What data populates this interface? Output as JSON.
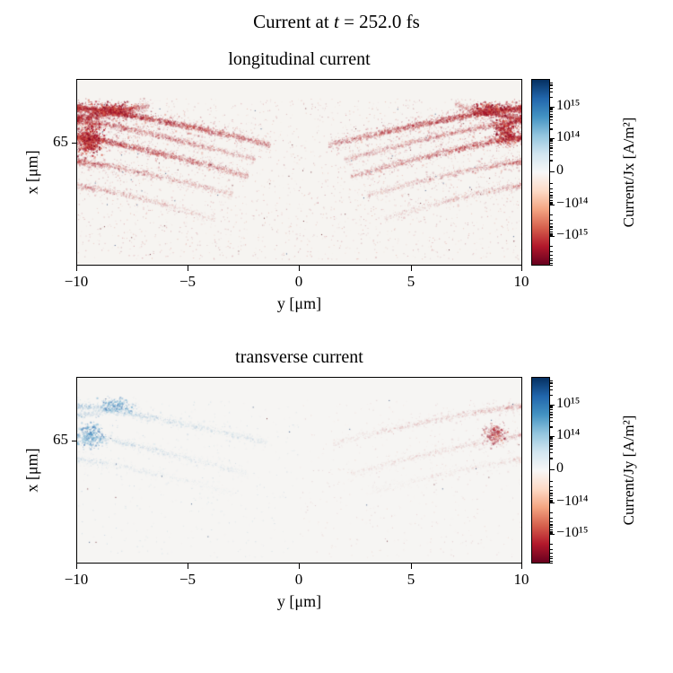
{
  "suptitle": {
    "prefix": "Current at ",
    "variable": "t",
    "suffix": " = 252.0 fs"
  },
  "panels": [
    {
      "title": "longitudinal current",
      "xlabel": "y [μm]",
      "ylabel": "x [μm]",
      "ytick": "65",
      "xticks": [
        "−10",
        "−5",
        "0",
        "5",
        "10"
      ],
      "colorbar": {
        "label": "Current/Jx [A/m²]",
        "ticks": [
          "10¹⁵",
          "10¹⁴",
          "0",
          "−10¹⁴",
          "−10¹⁵"
        ]
      }
    },
    {
      "title": "transverse current",
      "xlabel": "y [μm]",
      "ylabel": "x [μm]",
      "ytick": "65",
      "xticks": [
        "−10",
        "−5",
        "0",
        "5",
        "10"
      ],
      "colorbar": {
        "label": "Current/Jy [A/m²]",
        "ticks": [
          "10¹⁵",
          "10¹⁴",
          "0",
          "−10¹⁴",
          "−10¹⁵"
        ]
      }
    }
  ],
  "colors": {
    "axes_bg": "#f6f4f1",
    "neg": [
      "#d6604d",
      "#b2182b",
      "#8c0d25"
    ],
    "pos": [
      "#92c5de",
      "#4393c3",
      "#2166ac"
    ],
    "colormap_stops": [
      [
        "0%",
        "#053061"
      ],
      [
        "10%",
        "#2166ac"
      ],
      [
        "20%",
        "#4393c3"
      ],
      [
        "30%",
        "#92c5de"
      ],
      [
        "40%",
        "#d1e5f0"
      ],
      [
        "50%",
        "#f7f7f7"
      ],
      [
        "60%",
        "#fddbc7"
      ],
      [
        "70%",
        "#f4a582"
      ],
      [
        "80%",
        "#d6604d"
      ],
      [
        "90%",
        "#b2182b"
      ],
      [
        "100%",
        "#67001f"
      ]
    ]
  },
  "chart_data": [
    {
      "type": "heatmap",
      "title": "longitudinal current",
      "time_fs": 252.0,
      "xlabel": "y [μm]",
      "ylabel": "x [μm]",
      "xlim": [
        -10,
        10
      ],
      "xticks": [
        -10,
        -5,
        0,
        5,
        10
      ],
      "ytick_labels": [
        65
      ],
      "quantity": "Current/Jx [A/m²]",
      "colormap": "RdBu (blue = positive, red = negative)",
      "colorbar_scale": "symlog",
      "colorbar_tick_values": [
        1000000000000000.0,
        100000000000000.0,
        0,
        -100000000000000.0,
        -1000000000000000.0
      ],
      "summary": "Thin filamentary arcs of predominantly negative (red) longitudinal current Jx curve from the left and right edges toward the centre; dense dark-red clumps near y≈±9 at x≈65; the central region |y|<1.5 and the top band are almost zero (white), with sparse red speckle below.",
      "speckle_sign": "neg",
      "filaments": [
        {
          "y_from": -10,
          "y_to": -1.3,
          "v_edge": 0.15,
          "v_center": 0.35,
          "intensity": 0.85,
          "sign": -1
        },
        {
          "y_from": -10,
          "y_to": -6.8,
          "v_edge": 0.205,
          "v_center": 0.135,
          "intensity": 0.8,
          "sign": -1
        },
        {
          "y_from": -10,
          "y_to": -2.0,
          "v_edge": 0.22,
          "v_center": 0.43,
          "intensity": 0.55,
          "sign": -1
        },
        {
          "y_from": -10,
          "y_to": -2.3,
          "v_edge": 0.31,
          "v_center": 0.52,
          "intensity": 0.7,
          "sign": -1
        },
        {
          "y_from": -10,
          "y_to": -3.0,
          "v_edge": 0.44,
          "v_center": 0.62,
          "intensity": 0.45,
          "sign": -1
        },
        {
          "y_from": -10,
          "y_to": -3.8,
          "v_edge": 0.57,
          "v_center": 0.75,
          "intensity": 0.32,
          "sign": -1
        },
        {
          "y_from": 10,
          "y_to": 1.3,
          "v_edge": 0.15,
          "v_center": 0.35,
          "intensity": 0.78,
          "sign": -1
        },
        {
          "y_from": 10,
          "y_to": 7.0,
          "v_edge": 0.205,
          "v_center": 0.135,
          "intensity": 0.7,
          "sign": -1
        },
        {
          "y_from": 10,
          "y_to": 2.0,
          "v_edge": 0.22,
          "v_center": 0.43,
          "intensity": 0.5,
          "sign": -1
        },
        {
          "y_from": 10,
          "y_to": 2.3,
          "v_edge": 0.31,
          "v_center": 0.52,
          "intensity": 0.62,
          "sign": -1
        },
        {
          "y_from": 10,
          "y_to": 3.0,
          "v_edge": 0.44,
          "v_center": 0.62,
          "intensity": 0.4,
          "sign": -1
        },
        {
          "y_from": 10,
          "y_to": 3.8,
          "v_edge": 0.57,
          "v_center": 0.75,
          "intensity": 0.3,
          "sign": -1
        }
      ],
      "clumps": [
        {
          "y": -9.5,
          "v": 0.32,
          "ru": 0.022,
          "rv": 0.055,
          "n": 700,
          "sign": -1
        },
        {
          "y": -8.4,
          "v": 0.16,
          "ru": 0.035,
          "rv": 0.03,
          "n": 450,
          "sign": -1
        },
        {
          "y": 9.3,
          "v": 0.28,
          "ru": 0.02,
          "rv": 0.05,
          "n": 450,
          "sign": -1
        },
        {
          "y": 8.6,
          "v": 0.16,
          "ru": 0.03,
          "rv": 0.028,
          "n": 350,
          "sign": -1
        }
      ],
      "style": {
        "seed": 7,
        "density": 1.0,
        "alpha": 0.8,
        "background": "#f6f4f1",
        "speckle": {
          "n": 2300,
          "v_min": 0.1
        },
        "dark_specks": 70
      }
    },
    {
      "type": "heatmap",
      "title": "transverse current",
      "time_fs": 252.0,
      "xlabel": "y [μm]",
      "ylabel": "x [μm]",
      "xlim": [
        -10,
        10
      ],
      "xticks": [
        -10,
        -5,
        0,
        5,
        10
      ],
      "ytick_labels": [
        65
      ],
      "quantity": "Current/Jy [A/m²]",
      "colormap": "RdBu (blue = positive, red = negative)",
      "colorbar_scale": "symlog",
      "colorbar_tick_values": [
        1000000000000000.0,
        100000000000000.0,
        0,
        -100000000000000.0,
        -1000000000000000.0
      ],
      "summary": "Faint antisymmetric transverse current Jy: weakly positive (light blue) filaments on the left half (y<0) and weakly negative (light red/orange) filaments on the right half (y>0); small blue clump near y≈−9 and a compact red clump near y≈+9 at x≈65; most of the map is near zero.",
      "speckle_sign": "split",
      "filaments": [
        {
          "y_from": -10,
          "y_to": -1.5,
          "v_edge": 0.15,
          "v_center": 0.35,
          "intensity": 0.4,
          "sign": 1
        },
        {
          "y_from": -10,
          "y_to": -7.2,
          "v_edge": 0.2,
          "v_center": 0.14,
          "intensity": 0.35,
          "sign": 1
        },
        {
          "y_from": -10,
          "y_to": -2.3,
          "v_edge": 0.31,
          "v_center": 0.52,
          "intensity": 0.35,
          "sign": 1
        },
        {
          "y_from": -10,
          "y_to": -3.0,
          "v_edge": 0.44,
          "v_center": 0.62,
          "intensity": 0.22,
          "sign": 1
        },
        {
          "y_from": 10,
          "y_to": 1.5,
          "v_edge": 0.15,
          "v_center": 0.35,
          "intensity": 0.35,
          "sign": -1
        },
        {
          "y_from": 10,
          "y_to": 2.3,
          "v_edge": 0.31,
          "v_center": 0.52,
          "intensity": 0.3,
          "sign": -1
        },
        {
          "y_from": 10,
          "y_to": 3.0,
          "v_edge": 0.44,
          "v_center": 0.62,
          "intensity": 0.2,
          "sign": -1
        }
      ],
      "clumps": [
        {
          "y": -9.4,
          "v": 0.31,
          "ru": 0.02,
          "rv": 0.05,
          "n": 350,
          "sign": 1
        },
        {
          "y": -8.3,
          "v": 0.15,
          "ru": 0.03,
          "rv": 0.03,
          "n": 250,
          "sign": 1
        },
        {
          "y": 8.8,
          "v": 0.3,
          "ru": 0.018,
          "rv": 0.04,
          "n": 300,
          "sign": -1
        }
      ],
      "style": {
        "seed": 11,
        "density": 0.9,
        "alpha": 0.45,
        "background": "#f6f5f3",
        "speckle": {
          "n": 900,
          "v_min": 0.12
        },
        "dark_specks": 25
      }
    }
  ]
}
